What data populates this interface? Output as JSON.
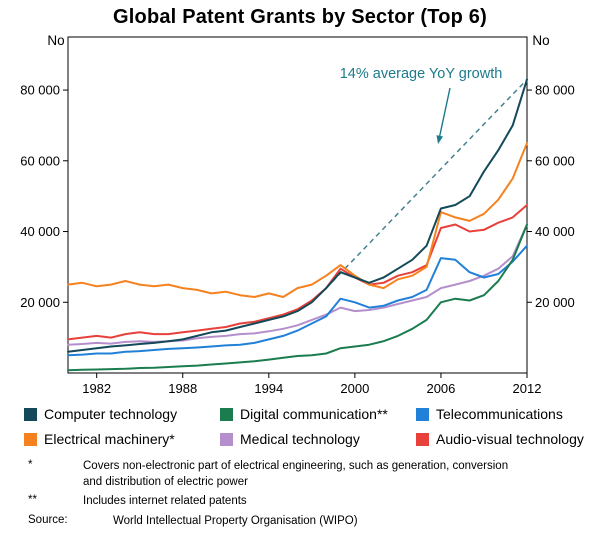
{
  "chart_data": {
    "type": "line",
    "title": "Global Patent Grants by Sector (Top 6)",
    "ylabel_left": "No",
    "ylabel_right": "No",
    "xlim": [
      1980,
      2012
    ],
    "ylim": [
      0,
      95000
    ],
    "yticks": [
      20000,
      40000,
      60000,
      80000
    ],
    "xticks": [
      1982,
      1988,
      1994,
      2000,
      2006,
      2012
    ],
    "grid": false,
    "legend_position": "bottom",
    "x": [
      1980,
      1981,
      1982,
      1983,
      1984,
      1985,
      1986,
      1987,
      1988,
      1989,
      1990,
      1991,
      1992,
      1993,
      1994,
      1995,
      1996,
      1997,
      1998,
      1999,
      2000,
      2001,
      2002,
      2003,
      2004,
      2005,
      2006,
      2007,
      2008,
      2009,
      2010,
      2011,
      2012
    ],
    "series": [
      {
        "name": "Computer technology",
        "color": "#14495a",
        "values": [
          6000,
          6500,
          7000,
          7500,
          7800,
          8200,
          8500,
          9000,
          9500,
          10500,
          11500,
          12000,
          13000,
          14000,
          15000,
          16000,
          17500,
          20000,
          24000,
          28500,
          27000,
          25500,
          27000,
          29500,
          32000,
          36000,
          46500,
          47500,
          50000,
          57000,
          63000,
          70000,
          83000
        ]
      },
      {
        "name": "Digital communication**",
        "color": "#1b7d4f",
        "values": [
          800,
          900,
          1000,
          1100,
          1200,
          1400,
          1500,
          1700,
          1900,
          2100,
          2400,
          2700,
          3000,
          3300,
          3800,
          4300,
          4800,
          5000,
          5500,
          7000,
          7500,
          8000,
          9000,
          10500,
          12500,
          15000,
          20000,
          21000,
          20500,
          22000,
          26000,
          32000,
          42000
        ]
      },
      {
        "name": "Telecommunications",
        "color": "#2180d8",
        "values": [
          5000,
          5200,
          5500,
          5500,
          6000,
          6200,
          6500,
          6800,
          7000,
          7200,
          7500,
          7800,
          8000,
          8500,
          9500,
          10500,
          12000,
          14000,
          16000,
          21000,
          20000,
          18500,
          19000,
          20500,
          21500,
          23500,
          32500,
          32000,
          28500,
          27000,
          28000,
          31500,
          36000
        ]
      },
      {
        "name": "Electrical machinery*",
        "color": "#f5821f",
        "values": [
          25000,
          25500,
          24500,
          25000,
          26000,
          25000,
          24500,
          25000,
          24000,
          23500,
          22500,
          23000,
          22000,
          21500,
          22500,
          21500,
          24000,
          25000,
          27500,
          30500,
          27500,
          25000,
          24000,
          26500,
          27500,
          30000,
          45500,
          44000,
          43000,
          45000,
          49000,
          55000,
          65000
        ]
      },
      {
        "name": "Medical technology",
        "color": "#b48fcb",
        "values": [
          8000,
          8200,
          8500,
          8300,
          8800,
          9000,
          8800,
          9000,
          9200,
          9800,
          10200,
          10500,
          11000,
          11200,
          11800,
          12500,
          13500,
          15000,
          16500,
          18500,
          17500,
          17800,
          18500,
          19500,
          20500,
          21500,
          24000,
          25000,
          26000,
          27500,
          29500,
          33000,
          42000
        ]
      },
      {
        "name": "Audio-visual technology",
        "color": "#e8403a",
        "values": [
          9500,
          10000,
          10500,
          10000,
          11000,
          11500,
          11000,
          11000,
          11500,
          12000,
          12500,
          13000,
          14000,
          14500,
          15500,
          16500,
          18000,
          20500,
          24000,
          29500,
          27000,
          25000,
          25500,
          27500,
          28500,
          30500,
          41000,
          42000,
          40000,
          40500,
          42500,
          44000,
          47500
        ]
      }
    ],
    "trend": {
      "x1": 1998,
      "y1": 24000,
      "x2": 2012,
      "y2": 83000,
      "color": "#46818f"
    },
    "annotation": {
      "label": "14% average YoY growth",
      "color": "#1c7a8c",
      "x": 421,
      "y": 46,
      "arrow": {
        "x1": 450,
        "y1": 56,
        "x2": 438,
        "y2": 112
      }
    }
  },
  "footnotes": [
    {
      "marker": "*",
      "text": "Covers non-electronic part of electrical engineering, such as generation, conversion and distribution of electric power"
    },
    {
      "marker": "**",
      "text": "Includes internet related patents"
    },
    {
      "marker": "Source:",
      "text": "World Intellectual Property Organisation (WIPO)"
    }
  ]
}
